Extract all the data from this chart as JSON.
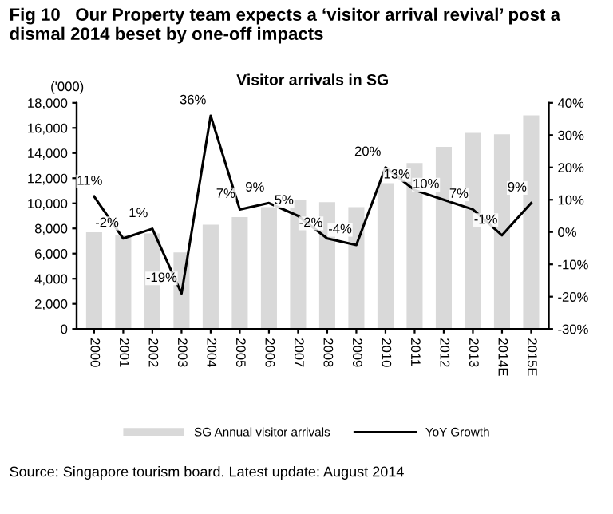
{
  "chart_data": {
    "type": "bar",
    "title": "Fig 10   Our Property team expects a ‘visitor arrival revival’ post a dismal 2014 beset by one-off impacts",
    "subtitle": "Visitor arrivals in SG",
    "ylabel": "('000)",
    "categories": [
      "2000",
      "2001",
      "2002",
      "2003",
      "2004",
      "2005",
      "2006",
      "2007",
      "2008",
      "2009",
      "2010",
      "2011",
      "2012",
      "2013",
      "2014E",
      "2015E"
    ],
    "series": [
      {
        "name": "SG Annual visitor arrivals",
        "color": "#d9d9d9",
        "values": [
          7700,
          7500,
          7600,
          6100,
          8300,
          8900,
          9700,
          10300,
          10100,
          9700,
          11600,
          13200,
          14500,
          15600,
          15500,
          17000
        ]
      },
      {
        "name": "YoY Growth",
        "type": "line",
        "axis": "y2",
        "color": "#000000",
        "values": [
          11,
          -2,
          1,
          -19,
          36,
          7,
          9,
          5,
          -2,
          -4,
          20,
          13,
          10,
          7,
          -1,
          9
        ],
        "value_labels": [
          "11%",
          "-2%",
          "1%",
          "-19%",
          "36%",
          "7%",
          "9%",
          "5%",
          "-2%",
          "-4%",
          "20%",
          "13%",
          "10%",
          "7%",
          "-1%",
          "9%"
        ]
      }
    ],
    "ylim": [
      0,
      18000
    ],
    "yticks": [
      {
        "value": 0,
        "label": "0"
      },
      {
        "value": 2000,
        "label": "2,000"
      },
      {
        "value": 4000,
        "label": "4,000"
      },
      {
        "value": 6000,
        "label": "6,000"
      },
      {
        "value": 8000,
        "label": "8,000"
      },
      {
        "value": 10000,
        "label": "10,000"
      },
      {
        "value": 12000,
        "label": "12,000"
      },
      {
        "value": 14000,
        "label": "14,000"
      },
      {
        "value": 16000,
        "label": "16,000"
      },
      {
        "value": 18000,
        "label": "18,000"
      }
    ],
    "y2lim": [
      -30,
      40
    ],
    "y2ticks": [
      {
        "value": -30,
        "label": "-30%"
      },
      {
        "value": -20,
        "label": "-20%"
      },
      {
        "value": -10,
        "label": "-10%"
      },
      {
        "value": 0,
        "label": "0%"
      },
      {
        "value": 10,
        "label": "10%"
      },
      {
        "value": 20,
        "label": "20%"
      },
      {
        "value": 30,
        "label": "30%"
      },
      {
        "value": 40,
        "label": "40%"
      }
    ],
    "grid": false,
    "legend": "bottom",
    "annotations": [
      "Source: Singapore tourism board. Latest update: August 2014"
    ]
  }
}
